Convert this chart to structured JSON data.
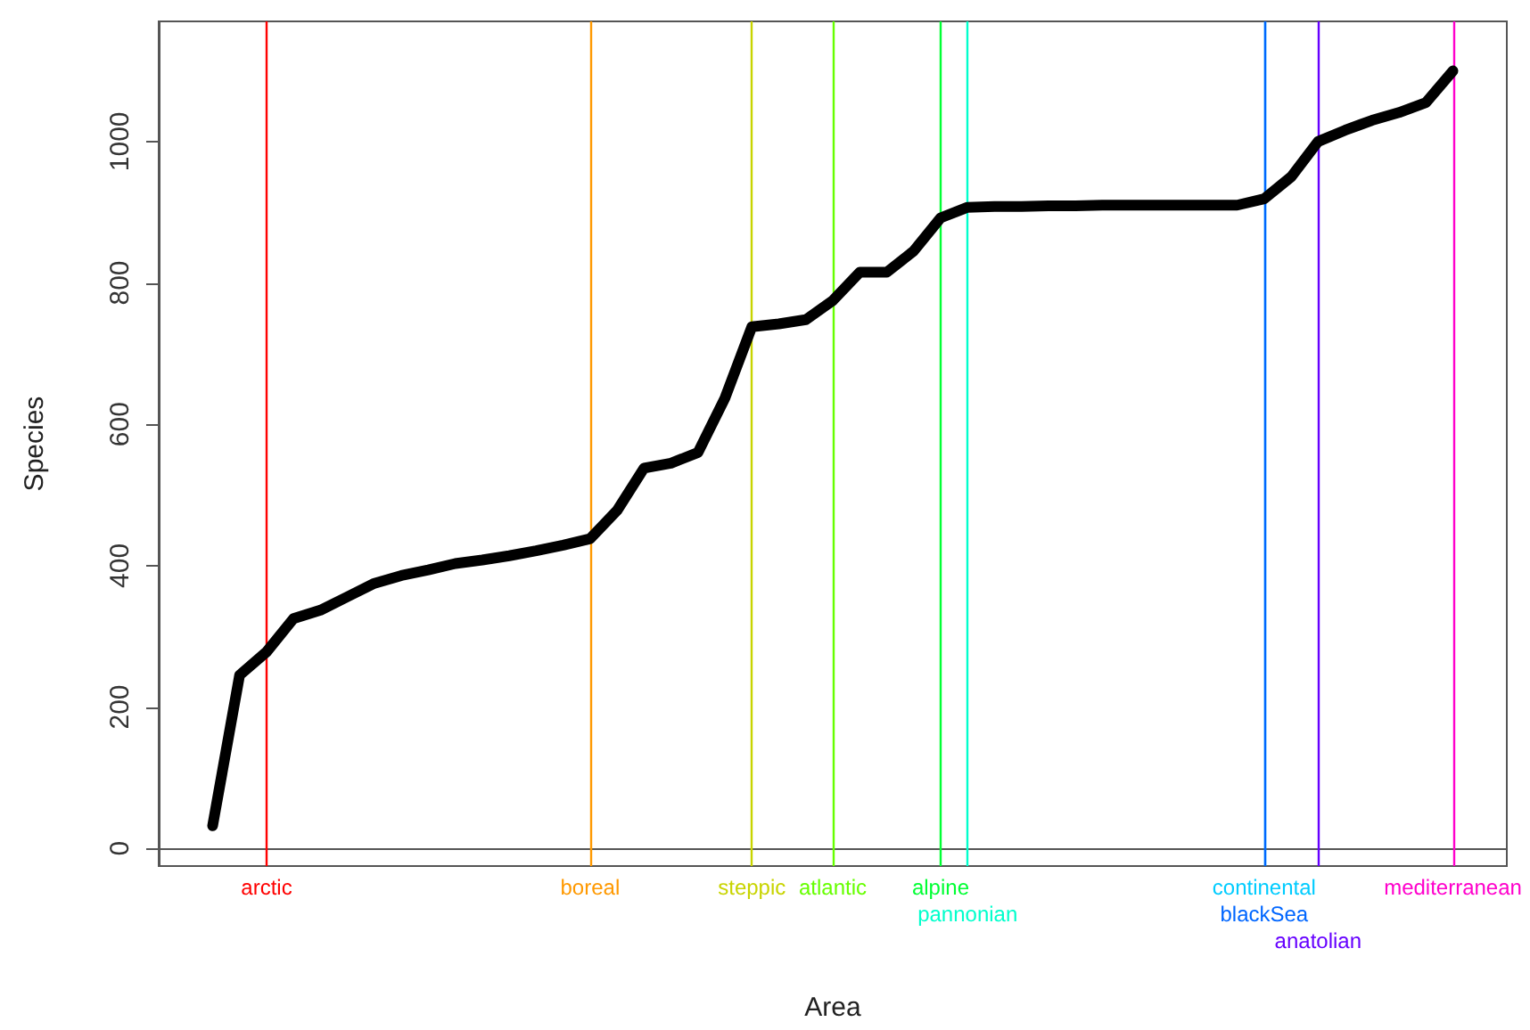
{
  "chart_data": {
    "type": "line",
    "xlabel": "Area",
    "ylabel": "Species",
    "ylim": [
      -25,
      1170
    ],
    "yticks": [
      0,
      200,
      400,
      600,
      800,
      1000
    ],
    "tick_labels": "y",
    "grid": false,
    "marker": "none",
    "line_style": "solid",
    "categories": [
      null,
      null,
      null,
      null,
      null,
      null,
      null,
      null,
      null,
      null,
      null,
      null,
      null,
      null,
      null,
      null,
      null,
      null,
      null,
      null,
      null,
      null,
      null,
      null,
      null,
      null,
      null,
      null,
      null,
      null,
      null,
      null,
      null,
      null,
      null,
      null,
      null,
      null,
      null,
      null,
      null,
      null,
      null,
      null,
      null,
      null,
      null,
      null,
      null,
      null,
      null
    ],
    "series": [
      {
        "color": "#000000",
        "values": [
          null,
          null,
          32,
          245,
          278,
          325,
          337,
          356,
          375,
          386,
          394,
          403,
          408,
          414,
          421,
          429,
          438,
          478,
          538,
          545,
          560,
          637,
          738,
          742,
          748,
          775,
          815,
          815,
          845,
          892,
          907,
          908,
          908,
          909,
          909,
          910,
          910,
          910,
          910,
          910,
          910,
          919,
          950,
          1000,
          1016,
          1030,
          1041,
          1055,
          1100,
          null,
          null
        ]
      }
    ],
    "annotations": [
      "arctic",
      "boreal",
      "steppic",
      "atlantic",
      "alpine",
      "pannonian",
      "continental",
      "blackSea",
      "anatolian",
      "mediterranean"
    ]
  }
}
